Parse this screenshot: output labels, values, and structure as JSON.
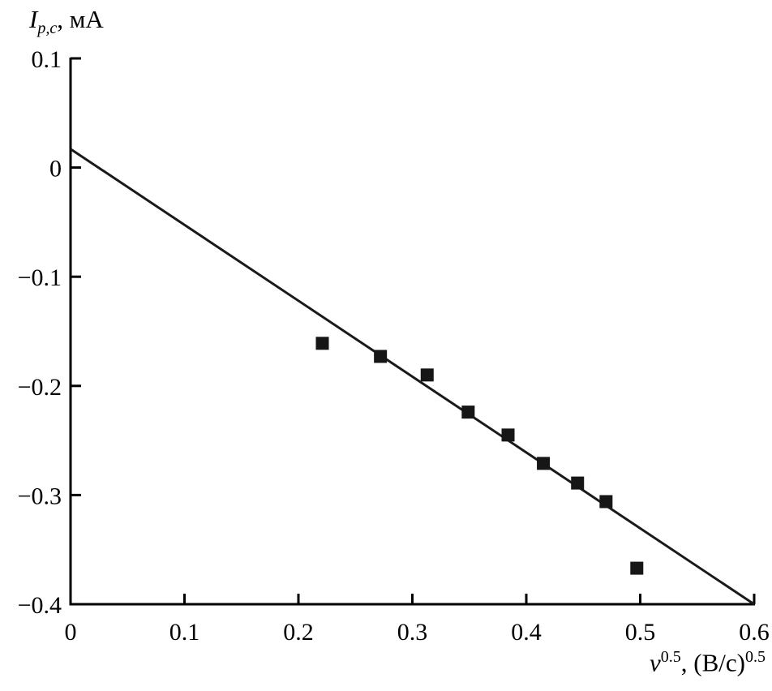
{
  "chart_data": {
    "type": "scatter",
    "title": "",
    "xlabel": "nu^0.5, (V/s)^0.5 (Cyrillic: ν^0.5, (В/с)^0.5)",
    "ylabel": "I_p,c, mA (Cyrillic: I_p,c, мА)",
    "xlim": [
      0,
      0.6
    ],
    "ylim": [
      -0.4,
      0.1
    ],
    "grid": false,
    "legend": "none",
    "marker": "square",
    "xticks": [
      {
        "value": 0,
        "label": "0"
      },
      {
        "value": 0.1,
        "label": "0.1"
      },
      {
        "value": 0.2,
        "label": "0.2"
      },
      {
        "value": 0.3,
        "label": "0.3"
      },
      {
        "value": 0.4,
        "label": "0.4"
      },
      {
        "value": 0.5,
        "label": "0.5"
      },
      {
        "value": 0.6,
        "label": "0.6"
      }
    ],
    "yticks": [
      {
        "value": 0.1,
        "label": "0.1"
      },
      {
        "value": 0,
        "label": "0"
      },
      {
        "value": -0.1,
        "label": "−0.1"
      },
      {
        "value": -0.2,
        "label": "−0.2"
      },
      {
        "value": -0.3,
        "label": "−0.3"
      },
      {
        "value": -0.4,
        "label": "−0.4"
      }
    ],
    "points": [
      {
        "x": 0.221,
        "y": -0.161
      },
      {
        "x": 0.272,
        "y": -0.173
      },
      {
        "x": 0.313,
        "y": -0.19
      },
      {
        "x": 0.349,
        "y": -0.224
      },
      {
        "x": 0.384,
        "y": -0.245
      },
      {
        "x": 0.415,
        "y": -0.271
      },
      {
        "x": 0.445,
        "y": -0.289
      },
      {
        "x": 0.47,
        "y": -0.306
      },
      {
        "x": 0.497,
        "y": -0.367
      }
    ],
    "fit_line": {
      "x1": 0,
      "y1": 0.017,
      "x2": 0.6,
      "y2": -0.4
    },
    "colors": {
      "axis": "#000000",
      "line": "#1a1a1a",
      "marker": "#161616",
      "background": "#ffffff"
    }
  },
  "labels": {
    "y_axis": {
      "symbol": "I",
      "subscript": "p,c",
      "suffix": ", мА"
    },
    "x_axis": {
      "symbol": "ν",
      "exponent": "0.5",
      "mid": ", (В/с)",
      "exponent2": "0.5"
    }
  }
}
